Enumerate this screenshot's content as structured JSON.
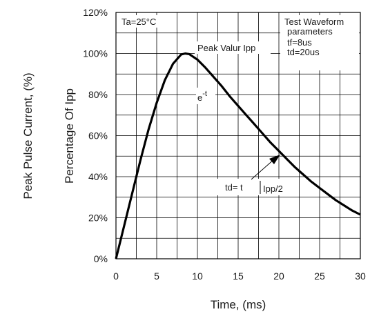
{
  "chart_data": {
    "type": "line",
    "title": "",
    "xlabel": "Time, (ms)",
    "ylabel": "Percentage Of Ipp",
    "ylabel_outer": "Peak Pulse Current, (%)",
    "xlim": [
      0,
      30
    ],
    "ylim": [
      0,
      120
    ],
    "x_ticks": [
      0,
      5,
      10,
      15,
      20,
      25,
      30
    ],
    "y_ticks": [
      0,
      20,
      40,
      60,
      80,
      100,
      120
    ],
    "y_tick_labels": [
      "0%",
      "20%",
      "40%",
      "60%",
      "80%",
      "100%",
      "120%"
    ],
    "grid": true,
    "series": [
      {
        "x": [
          0,
          1,
          2,
          3,
          4,
          5,
          6,
          7,
          8,
          8.5,
          9,
          10,
          11,
          12,
          13,
          14,
          15,
          16,
          17,
          18,
          19,
          20,
          21,
          22,
          23,
          24,
          25,
          26,
          27,
          28,
          29,
          30
        ],
        "values": [
          0,
          16,
          32,
          48,
          63,
          76,
          87,
          95,
          99.5,
          100,
          99.7,
          97,
          93,
          88.5,
          84,
          79,
          74.5,
          70,
          65.5,
          61,
          56.5,
          52.5,
          48.5,
          44.5,
          41,
          37.5,
          34.5,
          31.5,
          28.5,
          26,
          23.5,
          21.5
        ]
      }
    ],
    "annotations": {
      "ambient": "Ta=25°C",
      "peak": "Peak Valur Ipp",
      "decay_base": "e",
      "decay_exp": "-t",
      "td_label": "td= t",
      "td_sub": "Ipp/2",
      "test_title": "Test Waveform",
      "test_sub": "parameters",
      "tf": "tf=8us",
      "td": "td=20us"
    }
  }
}
